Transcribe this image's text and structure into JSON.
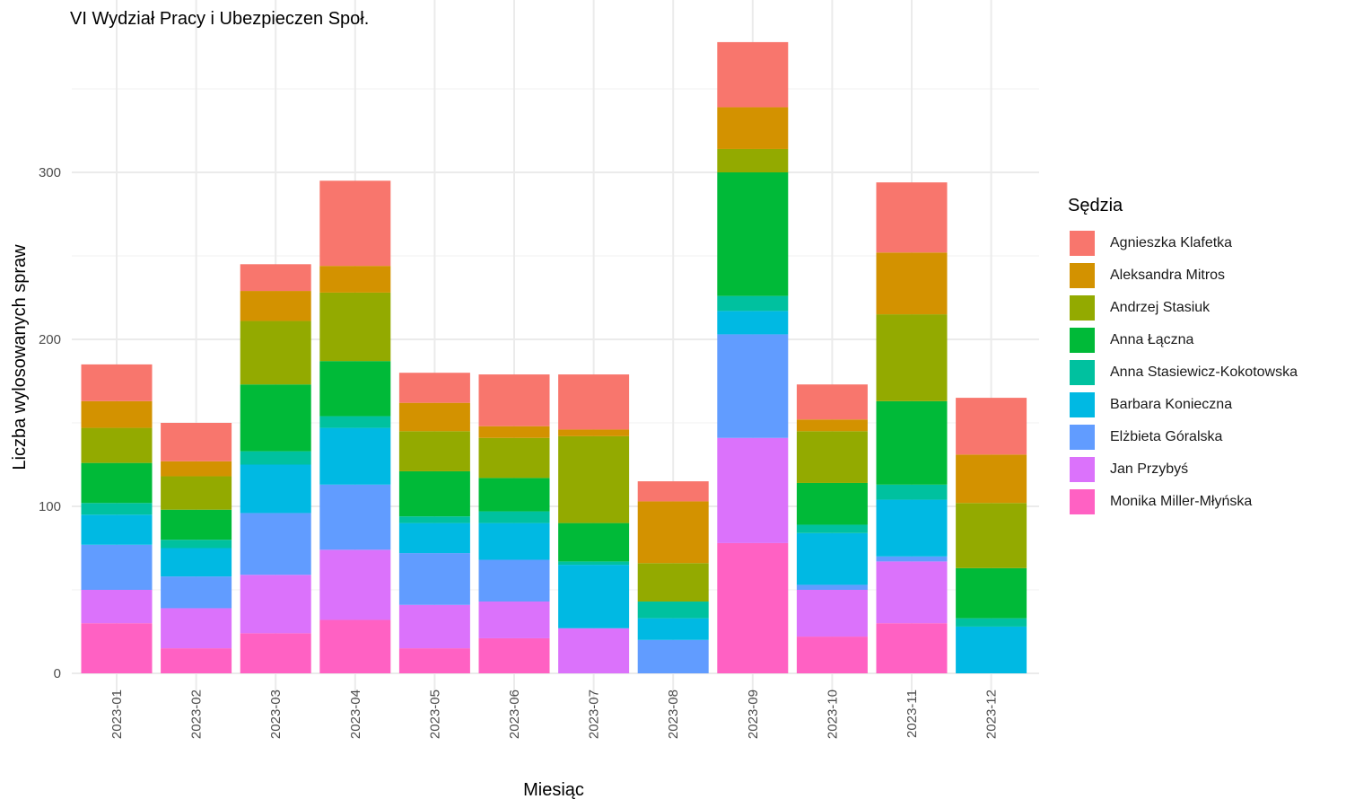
{
  "chart_data": {
    "type": "bar",
    "stacked": true,
    "title": "VI Wydział Pracy i Ubezpieczen Społ.",
    "xlabel": "Miesiąc",
    "ylabel": "Liczba wylosowanych spraw",
    "ylim": [
      0,
      390
    ],
    "yticks": [
      0,
      100,
      200,
      300
    ],
    "grid": true,
    "legend_title": "Sędzia",
    "legend_position": "right",
    "categories": [
      "2023-01",
      "2023-02",
      "2023-03",
      "2023-04",
      "2023-05",
      "2023-06",
      "2023-07",
      "2023-08",
      "2023-09",
      "2023-10",
      "2023-11",
      "2023-12"
    ],
    "series": [
      {
        "name": "Agnieszka Klafetka",
        "color": "#F8766D",
        "values": [
          22,
          23,
          16,
          51,
          18,
          31,
          33,
          12,
          39,
          21,
          42,
          34
        ]
      },
      {
        "name": "Aleksandra Mitros",
        "color": "#D39200",
        "values": [
          16,
          9,
          18,
          16,
          17,
          7,
          4,
          37,
          25,
          7,
          37,
          29
        ]
      },
      {
        "name": "Andrzej Stasiuk",
        "color": "#93AA00",
        "values": [
          21,
          20,
          38,
          41,
          24,
          24,
          52,
          23,
          14,
          31,
          52,
          39
        ]
      },
      {
        "name": "Anna Łączna",
        "color": "#00BA38",
        "values": [
          24,
          18,
          40,
          33,
          27,
          20,
          23,
          0,
          74,
          25,
          50,
          30
        ]
      },
      {
        "name": "Anna Stasiewicz-Kokotowska",
        "color": "#00C19F",
        "values": [
          7,
          5,
          8,
          7,
          4,
          7,
          2,
          10,
          9,
          5,
          9,
          5
        ]
      },
      {
        "name": "Barbara Konieczna",
        "color": "#00B9E3",
        "values": [
          18,
          17,
          29,
          34,
          18,
          22,
          38,
          13,
          14,
          31,
          34,
          28
        ]
      },
      {
        "name": "Elżbieta Góralska",
        "color": "#619CFF",
        "values": [
          27,
          19,
          37,
          39,
          31,
          25,
          0,
          20,
          62,
          3,
          3,
          0
        ]
      },
      {
        "name": "Jan Przybyś",
        "color": "#DB72FB",
        "values": [
          20,
          24,
          35,
          42,
          26,
          22,
          27,
          0,
          63,
          28,
          37,
          0
        ]
      },
      {
        "name": "Monika Miller-Młyńska",
        "color": "#FF61C3",
        "values": [
          30,
          15,
          24,
          32,
          15,
          21,
          0,
          0,
          78,
          22,
          30,
          0
        ]
      }
    ]
  }
}
